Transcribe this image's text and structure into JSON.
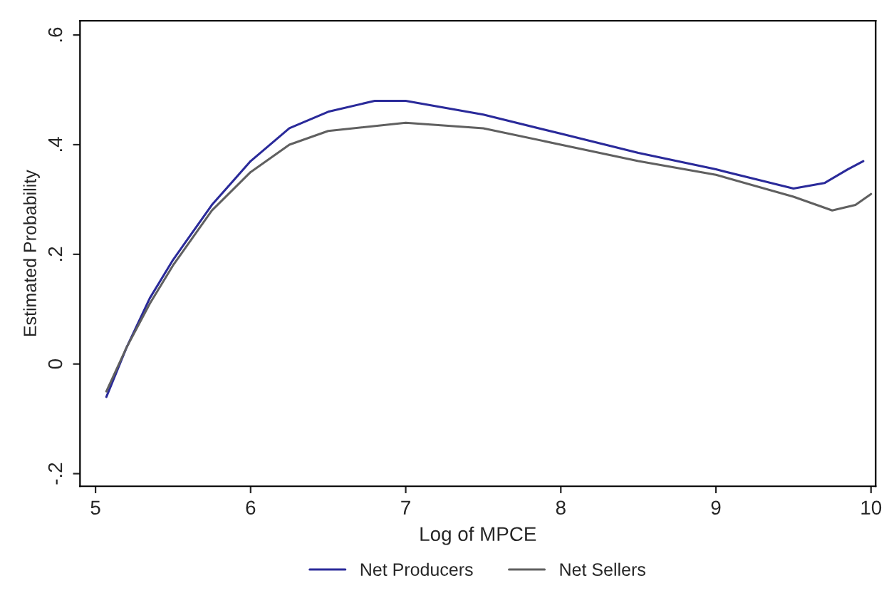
{
  "chart_data": {
    "type": "line",
    "xlabel": "Log of MPCE",
    "ylabel": "Estimated Probability",
    "xlim": [
      4.9,
      10.03
    ],
    "xticks": [
      5,
      6,
      7,
      8,
      9,
      10
    ],
    "ylim": [
      -0.223,
      0.626
    ],
    "yticks": [
      {
        "value": 0.6,
        "label": ".6"
      },
      {
        "value": 0.4,
        "label": ".4"
      },
      {
        "value": 0.2,
        "label": ".2"
      },
      {
        "value": 0,
        "label": "0"
      },
      {
        "value": -0.2,
        "label": "-.2"
      }
    ],
    "grid": false,
    "legend": "bottom",
    "line_style": "solid",
    "marker": "none",
    "series": [
      {
        "name": "Net Producers",
        "color": "#2a2a9a",
        "x": [
          5.07,
          5.2,
          5.35,
          5.5,
          5.75,
          6.0,
          6.25,
          6.5,
          6.8,
          7.0,
          7.5,
          8.0,
          8.5,
          9.0,
          9.5,
          9.7,
          9.85,
          9.95
        ],
        "values": [
          -0.06,
          0.03,
          0.12,
          0.19,
          0.29,
          0.37,
          0.43,
          0.46,
          0.48,
          0.48,
          0.455,
          0.42,
          0.385,
          0.355,
          0.32,
          0.33,
          0.355,
          0.37
        ]
      },
      {
        "name": "Net Sellers",
        "color": "#606060",
        "x": [
          5.07,
          5.2,
          5.35,
          5.5,
          5.75,
          6.0,
          6.25,
          6.5,
          7.0,
          7.5,
          8.0,
          8.5,
          9.0,
          9.5,
          9.75,
          9.9,
          10.0
        ],
        "values": [
          -0.05,
          0.03,
          0.11,
          0.18,
          0.28,
          0.35,
          0.4,
          0.425,
          0.44,
          0.43,
          0.4,
          0.37,
          0.345,
          0.305,
          0.28,
          0.29,
          0.31
        ]
      }
    ]
  }
}
